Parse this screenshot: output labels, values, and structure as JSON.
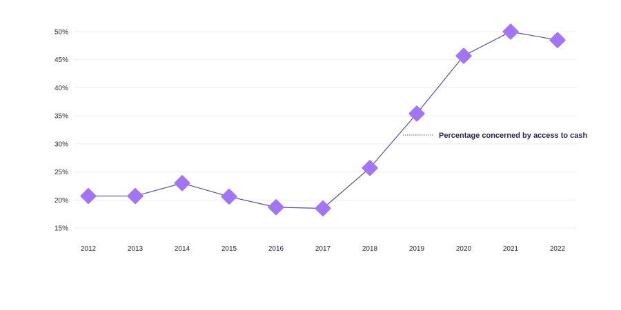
{
  "chart_data": {
    "type": "line",
    "title": "",
    "xlabel": "",
    "ylabel": "",
    "categories": [
      "2012",
      "2013",
      "2014",
      "2015",
      "2016",
      "2017",
      "2018",
      "2019",
      "2020",
      "2021",
      "2022"
    ],
    "series": [
      {
        "name": "Percentage concerned by access to cash",
        "values": [
          20.7,
          20.7,
          23.0,
          20.6,
          18.7,
          18.5,
          25.7,
          35.4,
          45.7,
          50.0,
          48.5
        ]
      }
    ],
    "ylim": [
      15,
      50
    ],
    "yticks": [
      15,
      20,
      25,
      30,
      35,
      40,
      45,
      50
    ],
    "ytick_labels": [
      "15%",
      "20%",
      "25%",
      "30%",
      "35%",
      "40%",
      "45%",
      "50%"
    ],
    "grid": true,
    "legend": "none",
    "annotation": {
      "text": "Percentage concerned by access to cash"
    },
    "colors": {
      "line": "#5b4a8f",
      "marker": "#a274f6",
      "grid": "#ececf2",
      "text": "#2a1f48"
    }
  }
}
